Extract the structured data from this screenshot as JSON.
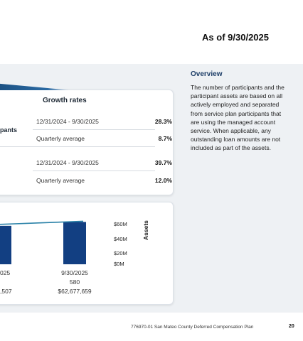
{
  "header": {
    "as_of": "As of 9/30/2025"
  },
  "growth": {
    "title": "Growth rates",
    "participants_label": "pants",
    "rows": [
      {
        "period": "12/31/2024 - 9/30/2025",
        "value": "28.3%"
      },
      {
        "period": "Quarterly average",
        "value": "8.7%"
      },
      {
        "period": "12/31/2024 - 9/30/2025",
        "value": "39.7%"
      },
      {
        "period": "Quarterly average",
        "value": "12.0%"
      }
    ]
  },
  "overview": {
    "title": "Overview",
    "text": "The number of participants and the participant assets are based on all actively employed and separated from service plan participants that are using the managed account service. When applicable, any outstanding loan amounts are not included as part of the assets."
  },
  "chart_data": {
    "type": "bar",
    "categories": [
      "025",
      "9/30/2025"
    ],
    "series": [
      {
        "values": [
          57,
          62.68
        ]
      }
    ],
    "y_axis_label": "Assets",
    "y_ticks": [
      "$60M",
      "$40M",
      "$20M",
      "$0M"
    ],
    "ylim": [
      0,
      60
    ],
    "x_sublabels": [
      {
        "participants": "",
        "assets": ",507"
      },
      {
        "participants": "580",
        "assets": "$62,677,659"
      }
    ],
    "colors": {
      "bar": "#123f82",
      "line": "#2b82a8"
    }
  },
  "footer": {
    "text": "776970-01 San Mateo County Deferred Compensation Plan",
    "page": "20"
  }
}
